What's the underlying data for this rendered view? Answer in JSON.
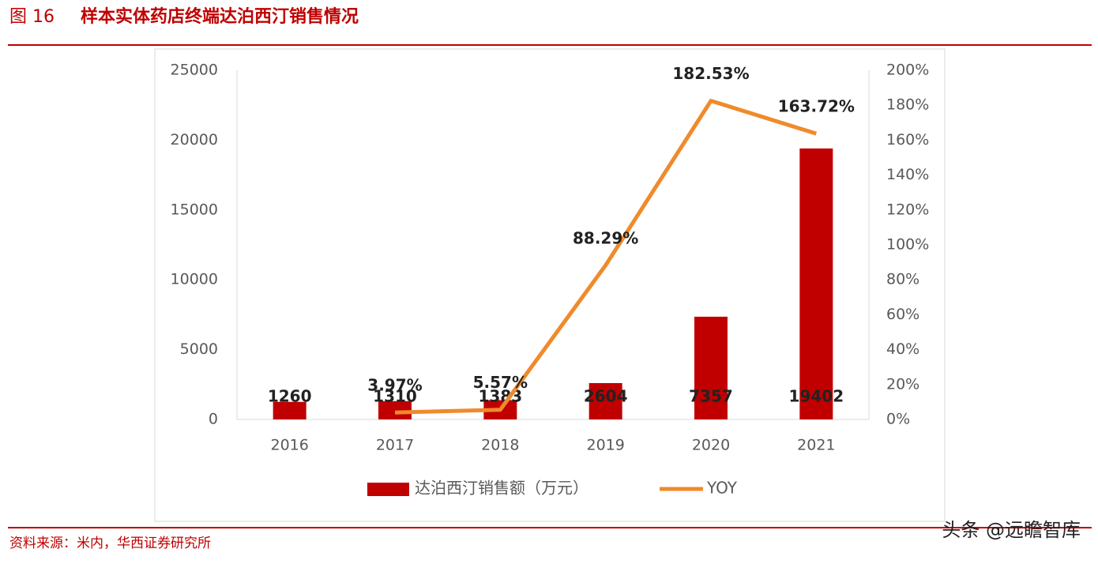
{
  "figure_label": "图 16",
  "title": "样本实体药店终端达泊西汀销售情况",
  "source": "资料来源：米内，华西证券研究所",
  "watermark": "头条 @远瞻智库",
  "chart_data": {
    "type": "bar_line",
    "categories": [
      "2016",
      "2017",
      "2018",
      "2019",
      "2020",
      "2021"
    ],
    "series": [
      {
        "name": "达泊西汀销售额（万元）",
        "color": "#c00000",
        "type": "bar",
        "values": [
          1260,
          1310,
          1383,
          2604,
          7357,
          19402
        ]
      },
      {
        "name": "YOY",
        "color": "#f08a2c",
        "type": "line",
        "axis": "y2",
        "values": [
          null,
          3.97,
          5.57,
          88.29,
          182.53,
          163.72
        ],
        "value_labels": [
          null,
          "3.97%",
          "5.57%",
          "88.29%",
          "182.53%",
          "163.72%"
        ]
      }
    ],
    "ylim": [
      0,
      25000
    ],
    "yticks": [
      0,
      5000,
      10000,
      15000,
      20000,
      25000
    ],
    "y2lim": [
      0,
      200
    ],
    "y2ticks": [
      {
        "value": 0,
        "label": "0%"
      },
      {
        "value": 20,
        "label": "20%"
      },
      {
        "value": 40,
        "label": "40%"
      },
      {
        "value": 60,
        "label": "60%"
      },
      {
        "value": 80,
        "label": "80%"
      },
      {
        "value": 100,
        "label": "100%"
      },
      {
        "value": 120,
        "label": "120%"
      },
      {
        "value": 140,
        "label": "140%"
      },
      {
        "value": 160,
        "label": "160%"
      },
      {
        "value": 180,
        "label": "180%"
      },
      {
        "value": 200,
        "label": "200%"
      }
    ],
    "legend": "bottom"
  }
}
